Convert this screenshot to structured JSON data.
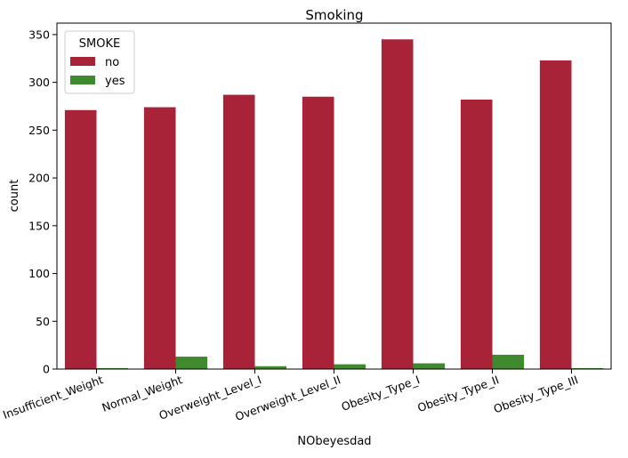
{
  "chart_data": {
    "type": "bar",
    "title": "Smoking",
    "xlabel": "NObeyesdad",
    "ylabel": "count",
    "categories": [
      "Insufficient_Weight",
      "Normal_Weight",
      "Overweight_Level_I",
      "Overweight_Level_II",
      "Obesity_Type_I",
      "Obesity_Type_II",
      "Obesity_Type_III"
    ],
    "series": [
      {
        "name": "no",
        "color": "#a82238",
        "values": [
          271,
          274,
          287,
          285,
          345,
          282,
          323
        ]
      },
      {
        "name": "yes",
        "color": "#3f8a2e",
        "values": [
          1,
          13,
          3,
          5,
          6,
          15,
          1
        ]
      }
    ],
    "ylim": [
      0,
      362
    ],
    "yticks": [
      0,
      50,
      100,
      150,
      200,
      250,
      300,
      350
    ],
    "legend": {
      "title": "SMOKE",
      "placement": "top-left"
    },
    "grid": false
  }
}
